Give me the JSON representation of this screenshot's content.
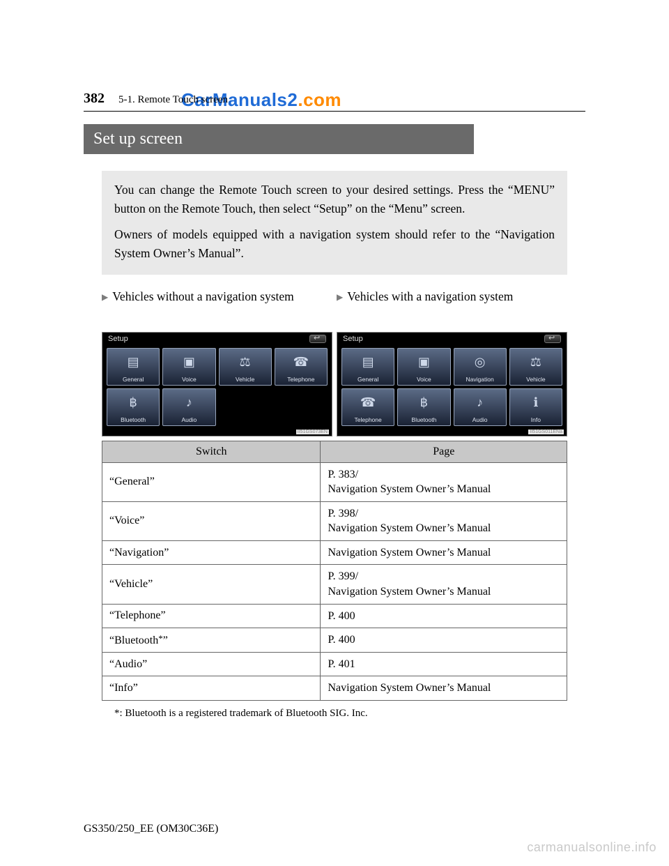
{
  "header": {
    "page_number": "382",
    "section": "5-1. Remote Touch screen",
    "watermark_part1": "CarM",
    "watermark_part2": "anuals2",
    "watermark_part3": ".com"
  },
  "title": "Set up screen",
  "intro": {
    "p1": "You can change the Remote Touch screen to your desired settings. Press the “MENU” button on the Remote Touch, then select “Setup” on the “Menu” screen.",
    "p2": "Owners of models equipped with a navigation system should refer to the “Navigation System Owner’s Manual”."
  },
  "columns": {
    "left_label": "Vehicles without a navigation system",
    "right_label": "Vehicles with a navigation system"
  },
  "screens": {
    "setup_label": "Setup",
    "without_nav": {
      "tiles": [
        "General",
        "Voice",
        "Vehicle",
        "Telephone",
        "Bluetooth",
        "Audio"
      ],
      "tag": "II51GS073EN"
    },
    "with_nav": {
      "tiles": [
        "General",
        "Voice",
        "Navigation",
        "Vehicle",
        "Telephone",
        "Bluetooth",
        "Audio",
        "Info"
      ],
      "tag": "II51GS011ENa"
    }
  },
  "table": {
    "columns": [
      "Switch",
      "Page"
    ],
    "rows": [
      [
        "“General”",
        "P. 383/\nNavigation System Owner’s Manual"
      ],
      [
        "“Voice”",
        "P. 398/\nNavigation System Owner’s Manual"
      ],
      [
        "“Navigation”",
        "Navigation System Owner’s Manual"
      ],
      [
        "“Vehicle”",
        "P. 399/\nNavigation System Owner’s Manual"
      ],
      [
        "“Telephone”",
        "P. 400"
      ],
      [
        "“Bluetooth*”",
        "P. 400"
      ],
      [
        "“Audio”",
        "P. 401"
      ],
      [
        "“Info”",
        "Navigation System Owner’s Manual"
      ]
    ]
  },
  "footnote": "*: Bluetooth is a registered trademark of Bluetooth SIG. Inc.",
  "footer": "GS350/250_EE (OM30C36E)",
  "bottom_watermark": "carmanualsonline.info",
  "icons": {
    "General": "▤",
    "Voice": "▣",
    "Vehicle": "⚖",
    "Telephone": "☎",
    "Bluetooth": "฿",
    "Audio": "♪",
    "Navigation": "◎",
    "Info": "ℹ"
  },
  "colors": {
    "title_bg": "#6a6a6a",
    "intro_bg": "#e9e9e9",
    "table_header_bg": "#c8c8c8",
    "border": "#666666"
  }
}
